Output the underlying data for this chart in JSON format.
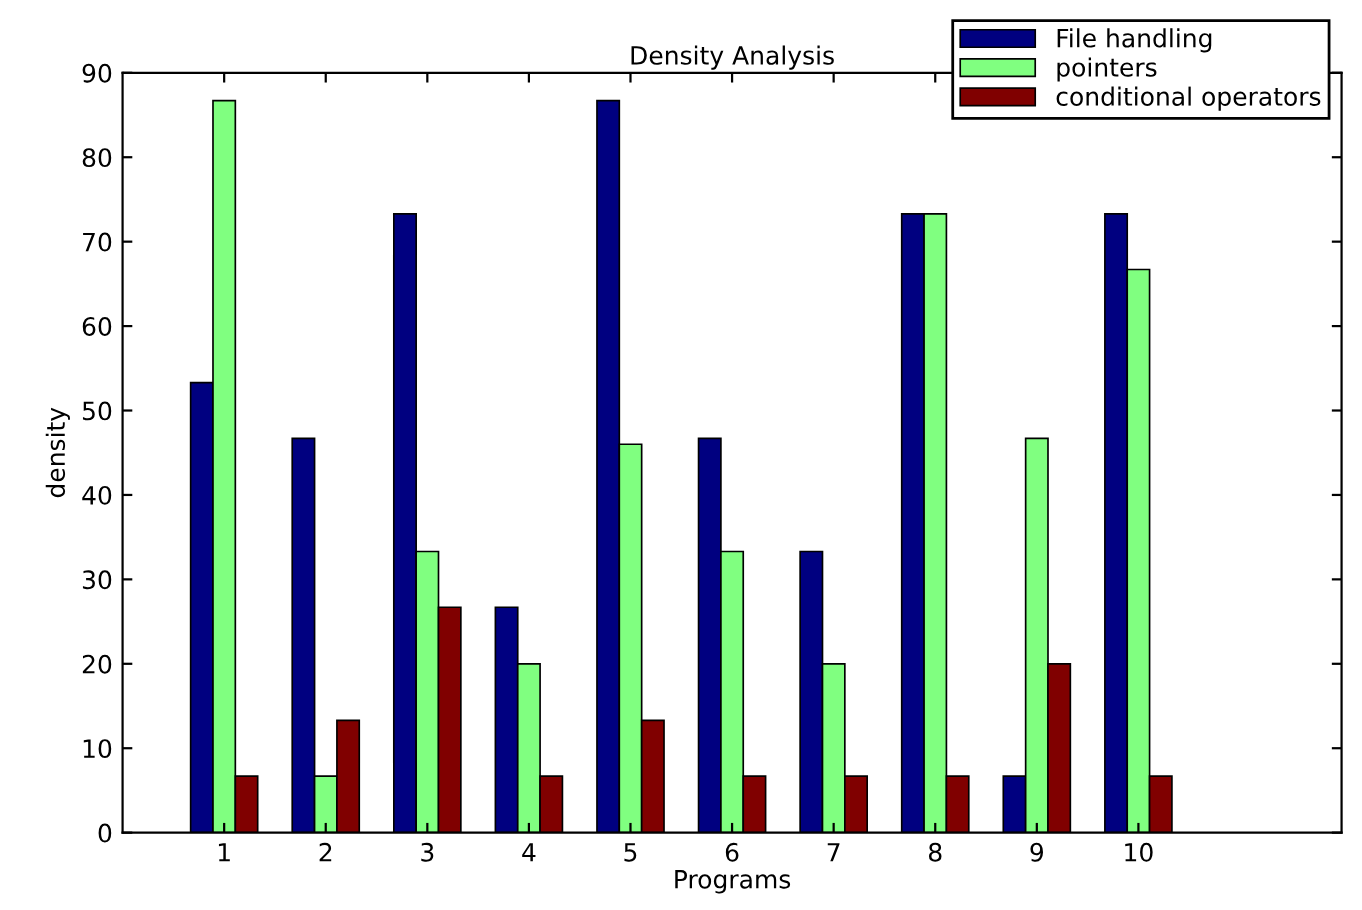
{
  "chart_data": {
    "type": "bar",
    "title": "Density Analysis",
    "xlabel": "Programs",
    "ylabel": "density",
    "x": [
      1,
      2,
      3,
      4,
      5,
      6,
      7,
      8,
      9,
      10
    ],
    "series": [
      {
        "name": "File handling",
        "color": "#000080",
        "values": [
          53.3,
          46.7,
          73.3,
          26.7,
          86.7,
          46.7,
          33.3,
          73.3,
          6.7,
          73.3
        ]
      },
      {
        "name": "pointers",
        "color": "#80ff80",
        "values": [
          86.7,
          6.7,
          33.3,
          20,
          46,
          33.3,
          20,
          73.3,
          46.7,
          66.7
        ]
      },
      {
        "name": "conditional operators",
        "color": "#800000",
        "values": [
          6.7,
          13.3,
          26.7,
          6.7,
          13.3,
          6.7,
          6.7,
          6.7,
          20,
          6.7
        ]
      }
    ],
    "xlim": [
      0,
      12
    ],
    "xticks": [
      1,
      2,
      3,
      4,
      5,
      6,
      7,
      8,
      9,
      10
    ],
    "ylim": [
      0,
      90
    ],
    "yticks": [
      0,
      10,
      20,
      30,
      40,
      50,
      60,
      70,
      80,
      90
    ],
    "grid": false,
    "legend": "top right"
  }
}
